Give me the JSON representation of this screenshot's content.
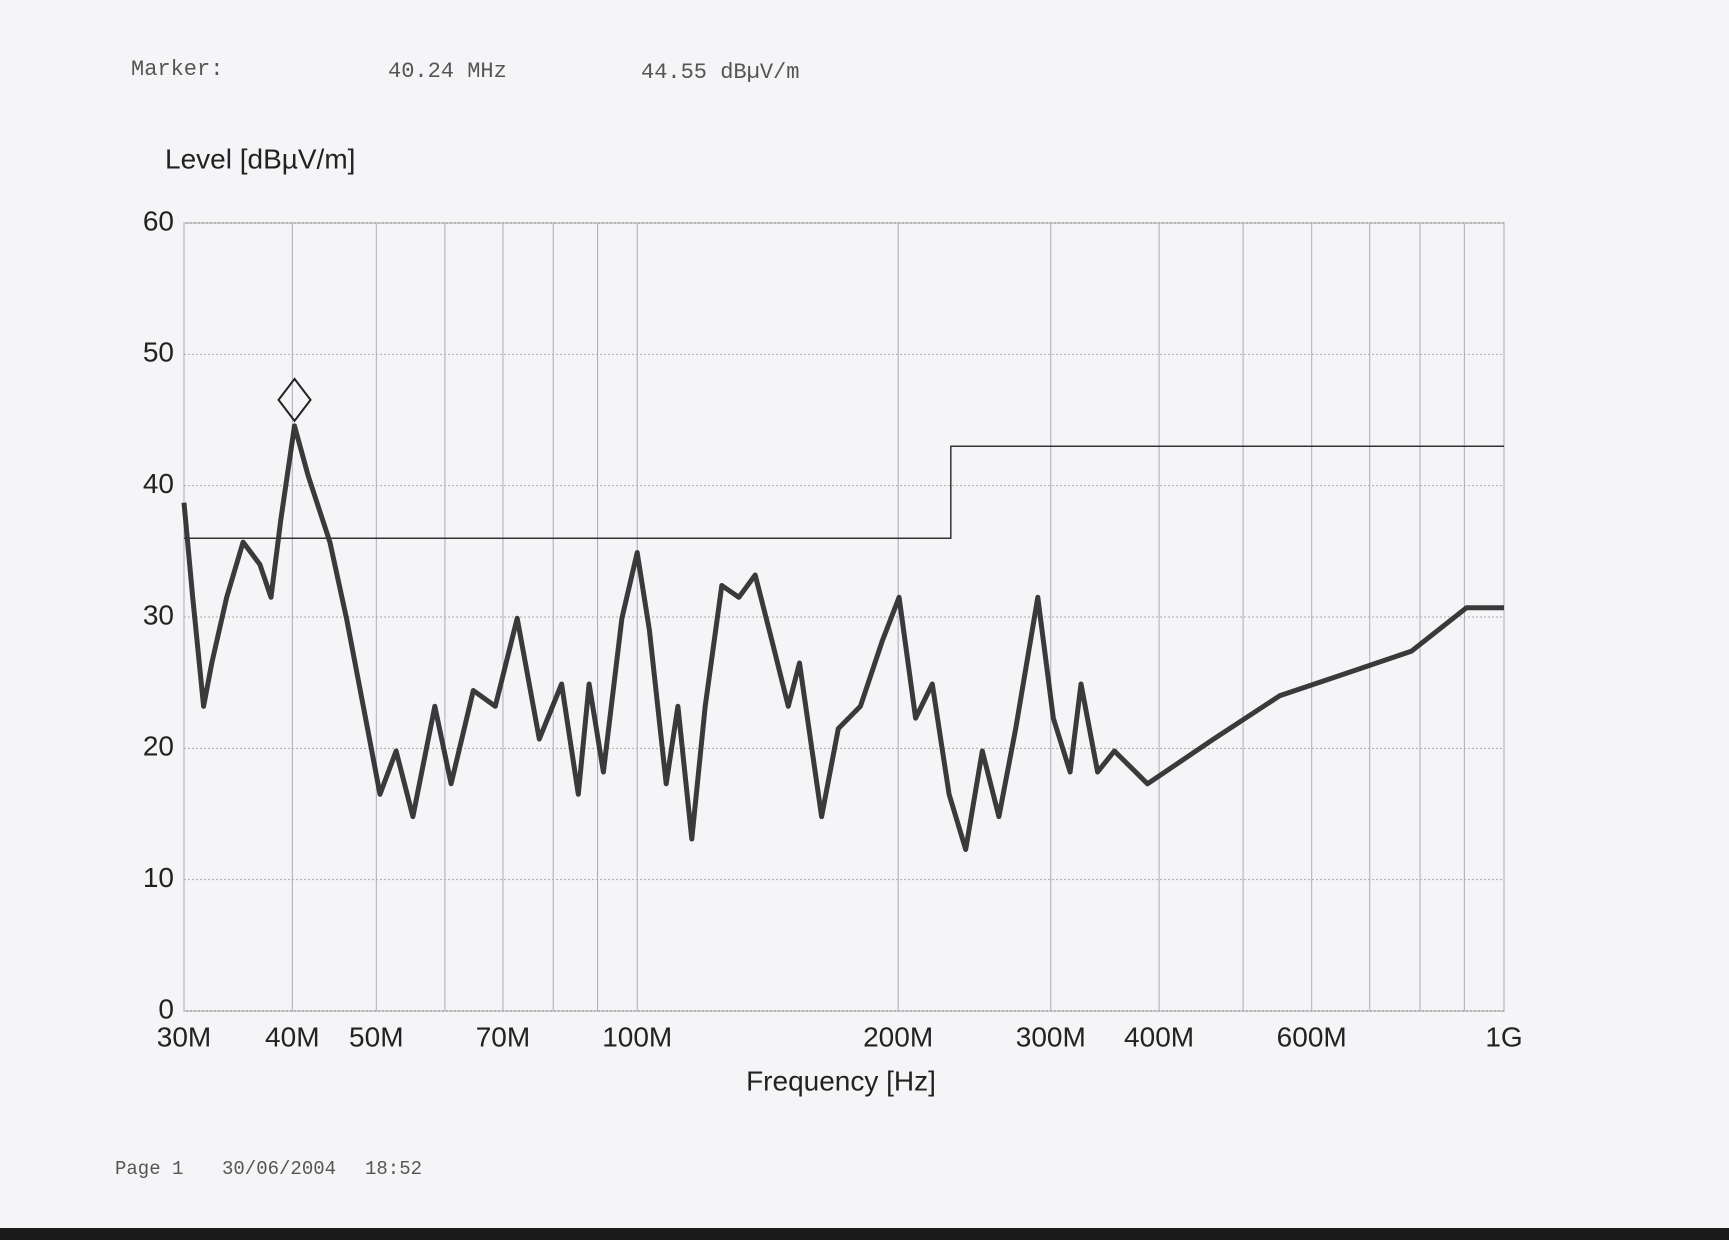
{
  "chart_data": {
    "type": "line",
    "marker_caption": "Marker:",
    "marker": {
      "x": 40240000,
      "x_label": "40.24 MHz",
      "y": 44.55,
      "y_label": "44.55 dBµV/m"
    },
    "ylabel": "Level [dBµV/m]",
    "xlabel": "Frequency [Hz]",
    "xscale": "log",
    "xlim": [
      30000000,
      1000000000
    ],
    "ylim": [
      0,
      60
    ],
    "yticks": [
      0,
      10,
      20,
      30,
      40,
      50,
      60
    ],
    "xticks": [
      {
        "value": 30000000,
        "label": "30M"
      },
      {
        "value": 40000000,
        "label": "40M"
      },
      {
        "value": 50000000,
        "label": "50M"
      },
      {
        "value": 70000000,
        "label": "70M"
      },
      {
        "value": 100000000,
        "label": "100M"
      },
      {
        "value": 200000000,
        "label": "200M"
      },
      {
        "value": 300000000,
        "label": "300M"
      },
      {
        "value": 400000000,
        "label": "400M"
      },
      {
        "value": 600000000,
        "label": "600M"
      },
      {
        "value": 1000000000,
        "label": "1G"
      }
    ],
    "xgrid_minor": [
      60000000,
      80000000,
      90000000,
      500000000,
      700000000,
      800000000,
      900000000
    ],
    "grid": true,
    "series": [
      {
        "color": "#262626",
        "x": [
          30000000,
          30700000,
          31600000,
          32300000,
          33600000,
          35100000,
          36700000,
          37800000,
          38800000,
          40240000,
          41700000,
          44200000,
          46200000,
          48300000,
          50500000,
          52700000,
          55100000,
          58400000,
          61000000,
          64700000,
          68600000,
          72700000,
          77100000,
          81800000,
          85500000,
          88000000,
          91400000,
          96000000,
          100000000,
          103300000,
          108000000,
          111400000,
          115600000,
          119800000,
          125200000,
          131000000,
          136800000,
          143000000,
          149400000,
          153900000,
          163200000,
          170600000,
          180900000,
          191800000,
          200500000,
          209500000,
          219000000,
          229000000,
          239300000,
          250100000,
          261400000,
          273300000,
          289800000,
          302000000,
          315800000,
          325100000,
          339700000,
          355200000,
          387900000,
          462400000,
          550900000,
          656700000,
          782300000,
          905000000,
          1000000000
        ],
        "values": [
          38.7,
          31.5,
          23.2,
          26.5,
          31.5,
          35.7,
          34,
          31.5,
          37.4,
          44.55,
          40.8,
          35.7,
          29.9,
          23.2,
          16.5,
          19.8,
          14.8,
          23.2,
          17.3,
          24.4,
          23.2,
          29.9,
          20.7,
          24.9,
          16.5,
          24.9,
          18.2,
          29.9,
          34.9,
          29,
          17.3,
          23.2,
          13.1,
          23.2,
          32.4,
          31.5,
          33.2,
          28.2,
          23.2,
          26.5,
          14.8,
          21.5,
          23.2,
          28.2,
          31.5,
          22.3,
          24.9,
          16.5,
          12.3,
          19.8,
          14.8,
          21.5,
          31.5,
          22.3,
          18.2,
          24.9,
          18.2,
          19.8,
          17.3,
          20.7,
          24,
          25.7,
          27.4,
          30.7,
          30.7
        ]
      },
      {
        "color": "#333333",
        "x": [
          30000000,
          230000000,
          230000000,
          1000000000
        ],
        "values": [
          36,
          36,
          43,
          43
        ]
      }
    ]
  },
  "footer": {
    "page": "Page 1",
    "date": "30/06/2004",
    "time": "18:52"
  }
}
